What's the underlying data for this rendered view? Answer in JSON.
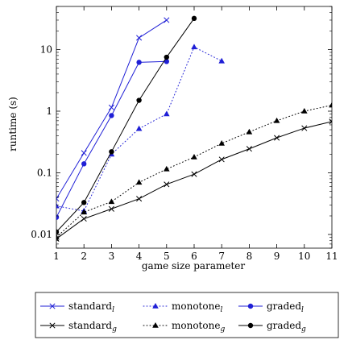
{
  "chart_data": {
    "type": "line",
    "xlabel": "game size parameter",
    "ylabel": "runtime (s)",
    "xlim": [
      1,
      11
    ],
    "ylim": [
      0.006,
      50
    ],
    "log_y": true,
    "grid": false,
    "legend_placement": "below",
    "x_ticks": [
      "1",
      "2",
      "3",
      "4",
      "5",
      "6",
      "7",
      "8",
      "9",
      "10",
      "11"
    ],
    "y_ticks": [
      {
        "value": 0.01,
        "label": "0.01"
      },
      {
        "value": 0.1,
        "label": "0.1"
      },
      {
        "value": 1,
        "label": "1"
      },
      {
        "value": 10,
        "label": "10"
      }
    ],
    "series": [
      {
        "name_base": "standard",
        "name_sub": "l",
        "color": "#1f1fd6",
        "marker": "x",
        "dash": "solid",
        "x": [
          1,
          2,
          3,
          4,
          5
        ],
        "y": [
          0.038,
          0.21,
          1.15,
          15.5,
          30
        ]
      },
      {
        "name_base": "monotone",
        "name_sub": "l",
        "color": "#1f1fd6",
        "marker": "triangle",
        "dash": "dotted",
        "x": [
          1,
          2,
          3,
          4,
          5,
          6,
          7
        ],
        "y": [
          0.029,
          0.024,
          0.2,
          0.52,
          0.9,
          11,
          6.5
        ]
      },
      {
        "name_base": "graded",
        "name_sub": "l",
        "color": "#1f1fd6",
        "marker": "circle",
        "dash": "solid",
        "x": [
          1,
          2,
          3,
          4,
          5
        ],
        "y": [
          0.019,
          0.14,
          0.85,
          6.2,
          6.4
        ]
      },
      {
        "name_base": "standard",
        "name_sub": "g",
        "color": "#000000",
        "marker": "x",
        "dash": "solid",
        "x": [
          1,
          2,
          3,
          4,
          5,
          6,
          7,
          8,
          9,
          10,
          11
        ],
        "y": [
          0.0085,
          0.018,
          0.026,
          0.038,
          0.065,
          0.095,
          0.165,
          0.245,
          0.37,
          0.53,
          0.68
        ]
      },
      {
        "name_base": "monotone",
        "name_sub": "g",
        "color": "#000000",
        "marker": "triangle",
        "dash": "dotted",
        "x": [
          1,
          2,
          3,
          4,
          5,
          6,
          7,
          8,
          9,
          10,
          11
        ],
        "y": [
          0.009,
          0.023,
          0.034,
          0.07,
          0.115,
          0.18,
          0.3,
          0.46,
          0.7,
          1.0,
          1.25
        ]
      },
      {
        "name_base": "graded",
        "name_sub": "g",
        "color": "#000000",
        "marker": "circle",
        "dash": "solid",
        "x": [
          1,
          2,
          3,
          4,
          5,
          6
        ],
        "y": [
          0.011,
          0.033,
          0.22,
          1.5,
          7.5,
          32
        ]
      }
    ]
  }
}
